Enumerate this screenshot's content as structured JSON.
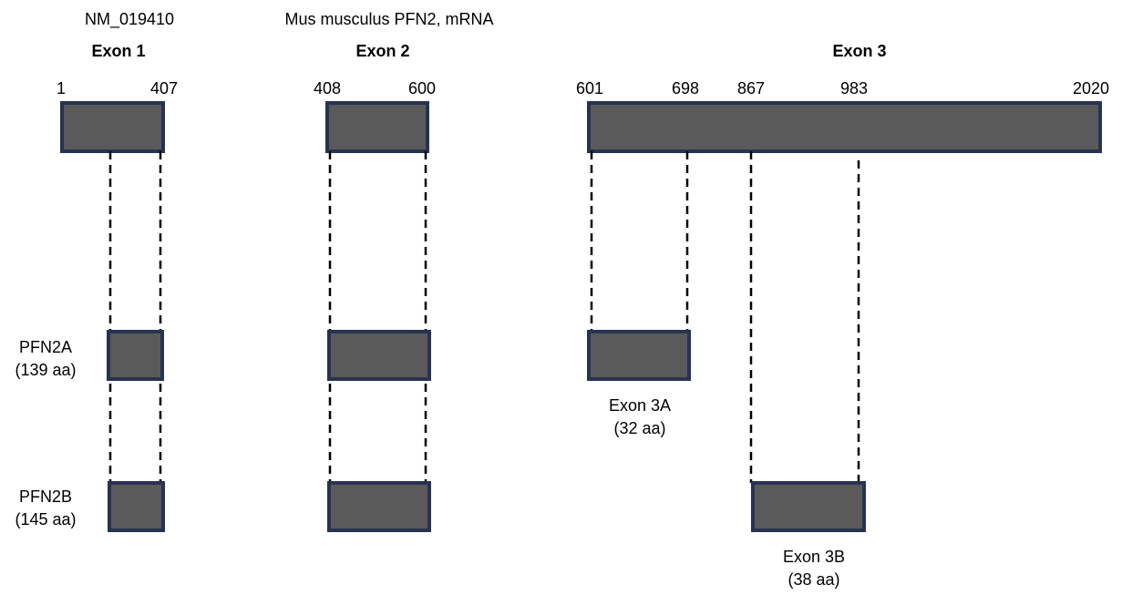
{
  "header": {
    "accession": "NM_019410",
    "description": "Mus musculus PFN2, mRNA"
  },
  "exons": [
    {
      "label": "Exon 1",
      "start": "1",
      "end": "407"
    },
    {
      "label": "Exon 2",
      "start": "408",
      "end": "600"
    },
    {
      "label": "Exon 3",
      "start": "601",
      "end": "2020"
    }
  ],
  "exon3_markers": [
    "698",
    "867",
    "983"
  ],
  "isoforms": [
    {
      "name": "PFN2A",
      "length": "(139 aa)",
      "tail_label": "Exon 3A",
      "tail_length": "(32 aa)"
    },
    {
      "name": "PFN2B",
      "length": "(145 aa)",
      "tail_label": "Exon 3B",
      "tail_length": "(38 aa)"
    }
  ],
  "colors": {
    "box_fill": "#5a5a5a",
    "box_stroke": "#283352",
    "guide_line": "#000000"
  }
}
